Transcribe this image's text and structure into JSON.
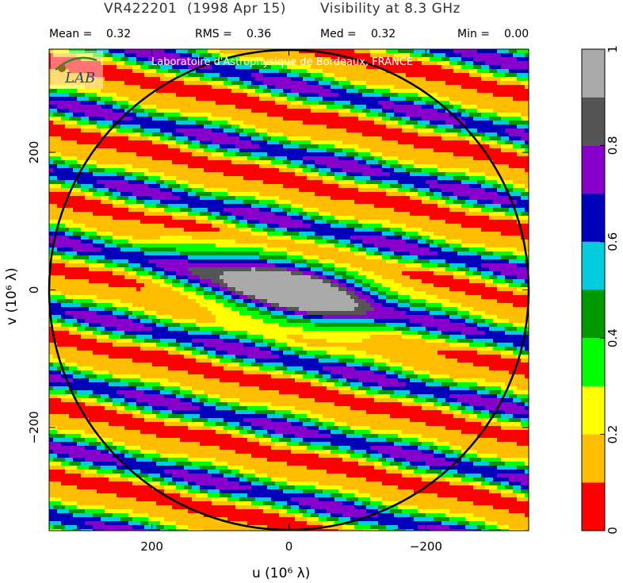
{
  "header": {
    "source": "VR422201",
    "date": "(1998 Apr 15)",
    "quantity": "Visibility at  8.3 GHz"
  },
  "stats": [
    {
      "label": "Mean =",
      "value": "0.32"
    },
    {
      "label": "RMS =",
      "value": "0.36"
    },
    {
      "label": "Med =",
      "value": "0.32"
    },
    {
      "label": "Min =",
      "value": "0.00"
    }
  ],
  "credit": "Laboratoire d'Astrophysique de Bordeaux, FRANCE",
  "logo_text": "LAB",
  "chart_data": {
    "type": "heatmap",
    "xlabel": "u  (10⁶ λ)",
    "ylabel": "v  (10⁶ λ)",
    "xlim": [
      350,
      -350
    ],
    "ylim": [
      -350,
      350
    ],
    "x_ticks": [
      200,
      0,
      -200
    ],
    "x_tick_labels": [
      "200",
      "0",
      "−200"
    ],
    "y_ticks": [
      200,
      0,
      -200
    ],
    "y_tick_labels": [
      "200",
      "0",
      "−200"
    ],
    "uv_circle_radius": 350,
    "colorbar": {
      "levels": [
        0,
        0.1,
        0.2,
        0.3,
        0.4,
        0.5,
        0.6,
        0.7,
        0.8,
        0.9,
        1.0
      ],
      "colors": [
        "#ff0000",
        "#ffbf00",
        "#ffff00",
        "#00ff00",
        "#009900",
        "#00ccdd",
        "#0000bb",
        "#8800cc",
        "#555555",
        "#aaaaaa"
      ],
      "tick_values": [
        0,
        0.2,
        0.4,
        0.6,
        0.8,
        1
      ],
      "tick_labels": [
        "0",
        "0.2",
        "0.4",
        "0.6",
        "0.8",
        "1"
      ]
    },
    "peak": {
      "u": 0,
      "v": 0,
      "value": 1.0
    }
  }
}
